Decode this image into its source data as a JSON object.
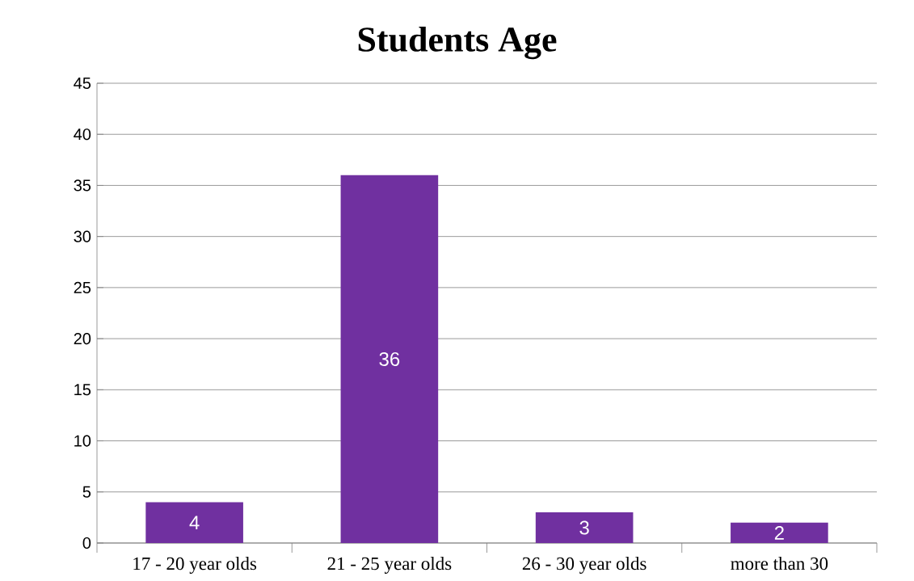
{
  "chart_data": {
    "type": "bar",
    "title": "Students Age",
    "categories": [
      "17 - 20 year olds",
      "21 - 25 year olds",
      "26 - 30 year olds",
      "more than 30"
    ],
    "values": [
      4,
      36,
      3,
      2
    ],
    "color": "#7030a0",
    "ylim": [
      0,
      45
    ],
    "yticks": [
      0,
      5,
      10,
      15,
      20,
      25,
      30,
      35,
      40,
      45
    ],
    "grid": "y",
    "data_labels": true
  }
}
